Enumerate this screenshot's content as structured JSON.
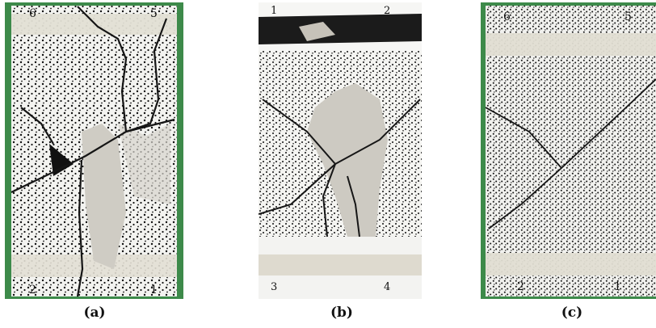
{
  "panels": [
    {
      "label": "(a)",
      "marks": {
        "top_left": "6",
        "top_right": "5",
        "bottom_left": "2",
        "bottom_right": "1"
      }
    },
    {
      "label": "(b)",
      "marks": {
        "top_left": "1",
        "top_right": "2",
        "bottom_left": "3",
        "bottom_right": "4"
      }
    },
    {
      "label": "(c)",
      "marks": {
        "top_left": "6",
        "top_right": "5",
        "bottom_left": "2",
        "bottom_right": "1"
      }
    }
  ],
  "colors": {
    "background_green": "#3d8a4a",
    "specimen_white": "#f1f1ee",
    "tape": "#e6e2d6",
    "crack": "#1a1a1a",
    "exposed_concrete": "#cfccc4"
  }
}
